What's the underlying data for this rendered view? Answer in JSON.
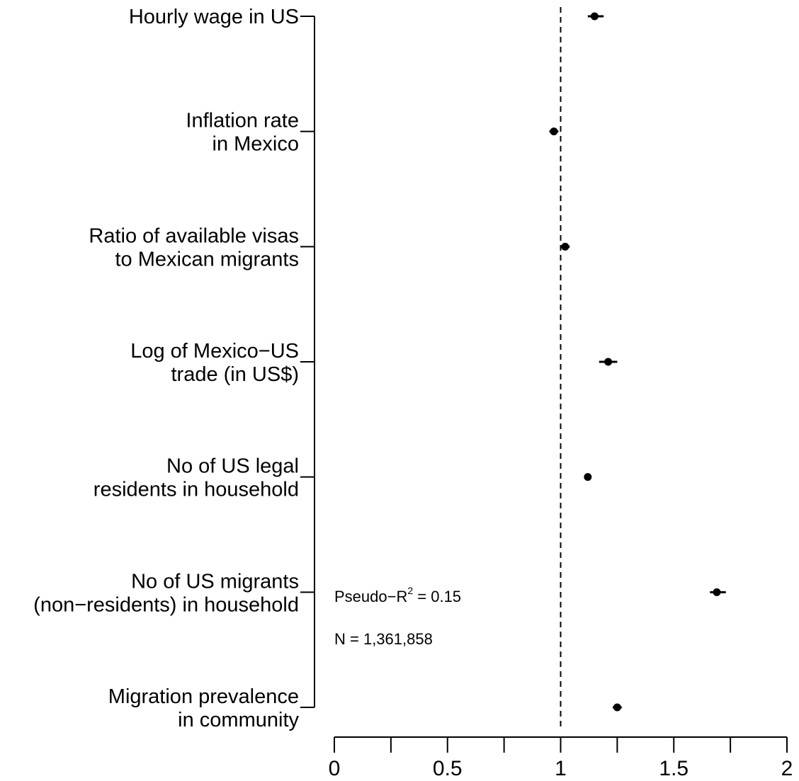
{
  "chart_data": {
    "type": "scatter",
    "orientation": "horizontal",
    "title": "",
    "xlabel": "",
    "ylabel": "",
    "xlim": [
      0,
      2
    ],
    "x_ticks": [
      0,
      0.25,
      0.5,
      0.75,
      1,
      1.25,
      1.5,
      1.75,
      2
    ],
    "x_tick_labels": [
      "0",
      "",
      "0.5",
      "",
      "1",
      "",
      "1.5",
      "",
      "2"
    ],
    "reference_line": {
      "x": 1,
      "style": "dashed"
    },
    "grid": false,
    "categories": [
      [
        "Hourly wage in US"
      ],
      [
        "Inflation rate",
        "in Mexico"
      ],
      [
        "Ratio of available visas",
        "to Mexican migrants"
      ],
      [
        "Log of Mexico−US",
        "trade (in US$)"
      ],
      [
        "No of US legal",
        "residents in household"
      ],
      [
        "No of US migrants",
        "(non−residents) in household"
      ],
      [
        "Migration prevalence",
        "in community"
      ]
    ],
    "points": [
      {
        "estimate": 1.15,
        "lower": 1.12,
        "upper": 1.19
      },
      {
        "estimate": 0.97,
        "lower": 0.95,
        "upper": 0.99
      },
      {
        "estimate": 1.02,
        "lower": 1.0,
        "upper": 1.04
      },
      {
        "estimate": 1.21,
        "lower": 1.17,
        "upper": 1.25
      },
      {
        "estimate": 1.12,
        "lower": 1.11,
        "upper": 1.13
      },
      {
        "estimate": 1.69,
        "lower": 1.66,
        "upper": 1.73
      },
      {
        "estimate": 1.25,
        "lower": 1.23,
        "upper": 1.27
      }
    ],
    "annotations": {
      "pseudo_r2_prefix": "Pseudo−R",
      "pseudo_r2_exponent": "2",
      "pseudo_r2_suffix": " = 0.15",
      "n_text": "N = 1,361,858"
    },
    "colors": {
      "marks": "#000000",
      "background": "#ffffff"
    }
  }
}
